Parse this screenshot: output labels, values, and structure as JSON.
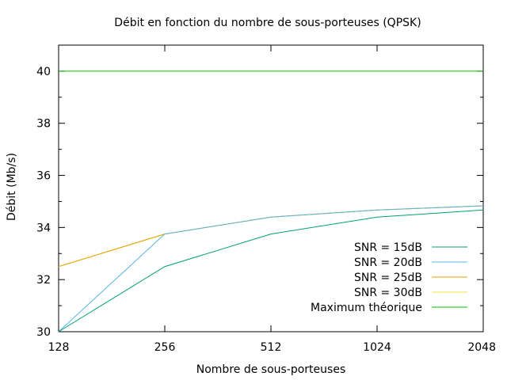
{
  "chart_data": {
    "type": "line",
    "title": "Débit en fonction du nombre de sous-porteuses (QPSK)",
    "xlabel": "Nombre de sous-porteuses",
    "ylabel": "Débit (Mb/s)",
    "x_scale": "log2",
    "categories": [
      "128",
      "256",
      "512",
      "1024",
      "2048"
    ],
    "x": [
      128,
      256,
      512,
      1024,
      2048
    ],
    "xlim": [
      128,
      2048
    ],
    "ylim": [
      30,
      41
    ],
    "yticks": [
      "30",
      "32",
      "34",
      "36",
      "38",
      "40"
    ],
    "ytick_values": [
      30,
      32,
      34,
      36,
      38,
      40
    ],
    "grid": false,
    "legend_position": "bottom-right",
    "series": [
      {
        "name": "SNR = 15dB",
        "color": "#009e73",
        "values": [
          30.0,
          32.5,
          33.75,
          34.4,
          34.67
        ]
      },
      {
        "name": "SNR = 20dB",
        "color": "#56b4e9",
        "values": [
          30.0,
          33.75,
          34.4,
          34.67,
          34.83
        ]
      },
      {
        "name": "SNR = 25dB",
        "color": "#e69f00",
        "values": [
          32.5,
          33.75,
          34.4,
          34.67,
          34.83
        ]
      },
      {
        "name": "SNR = 30dB",
        "color": "#f0e442",
        "values": [
          32.5,
          33.75,
          34.4,
          34.67,
          34.83
        ]
      },
      {
        "name": "Maximum théorique",
        "color": "#00c000",
        "values": [
          40,
          40,
          40,
          40,
          40
        ]
      }
    ]
  }
}
